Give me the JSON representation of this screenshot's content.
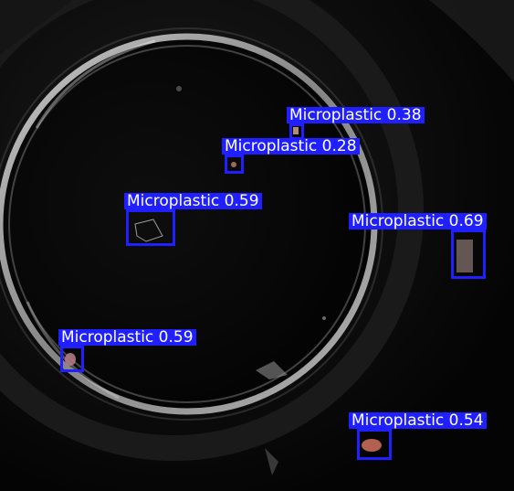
{
  "detections": [
    {
      "label": "Microplastic 0.38",
      "class": "Microplastic",
      "confidence": 0.38
    },
    {
      "label": "Microplastic 0.28",
      "class": "Microplastic",
      "confidence": 0.28
    },
    {
      "label": "Microplastic 0.59",
      "class": "Microplastic",
      "confidence": 0.59
    },
    {
      "label": "Microplastic 0.69",
      "class": "Microplastic",
      "confidence": 0.69
    },
    {
      "label": "Microplastic 0.59",
      "class": "Microplastic",
      "confidence": 0.59
    },
    {
      "label": "Microplastic 0.54",
      "class": "Microplastic",
      "confidence": 0.54
    }
  ],
  "colors": {
    "box": "#1f1fff",
    "label_text": "#ffffff",
    "background": "#050505"
  }
}
